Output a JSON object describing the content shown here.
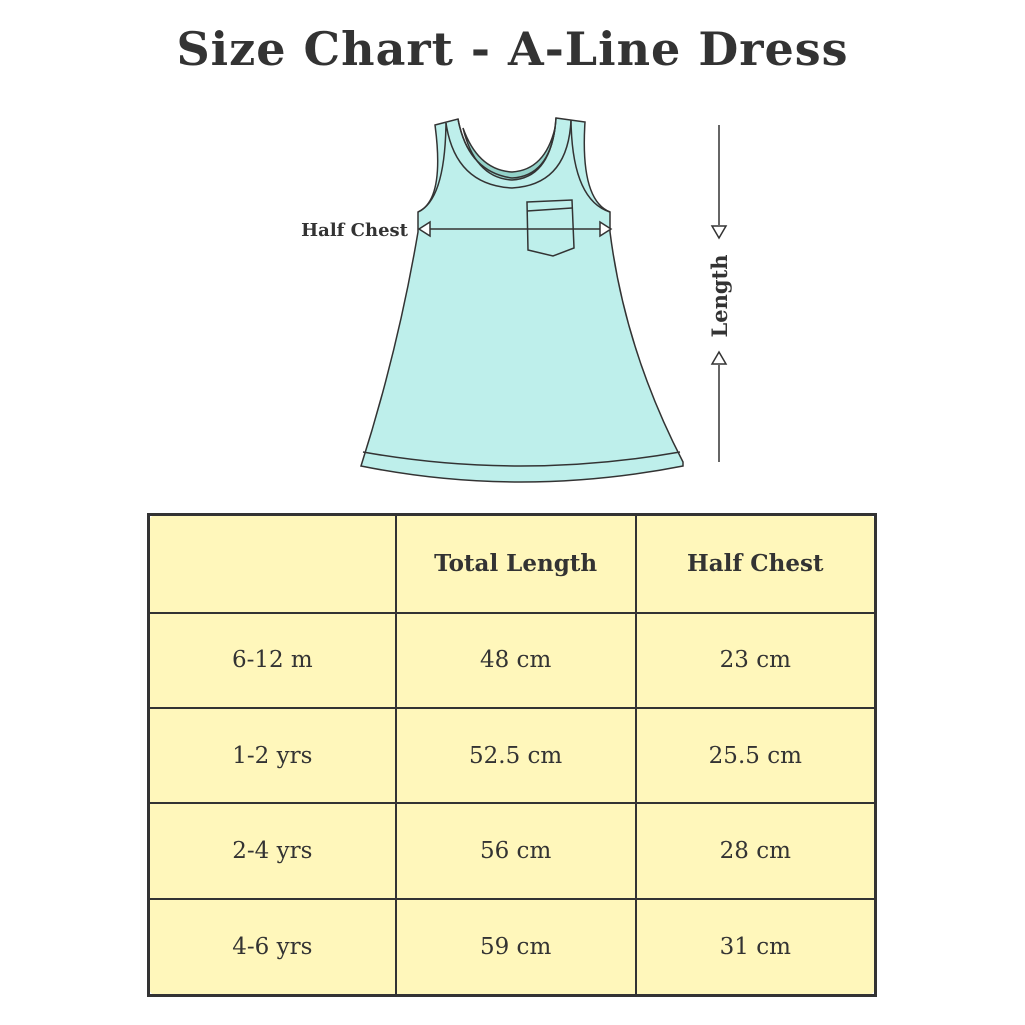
{
  "title": "Size Chart - A-Line Dress",
  "diagram": {
    "half_chest_label": "Half Chest",
    "length_label": "Length",
    "colors": {
      "dress": "#BEEFEB",
      "neck_inner": "#94D2C9",
      "outline": "#333333",
      "table_fill": "#FFF7BB"
    }
  },
  "table": {
    "headers": [
      "",
      "Total Length",
      "Half Chest"
    ],
    "rows": [
      {
        "size": "6-12 m",
        "total_length": "48 cm",
        "half_chest": "23 cm"
      },
      {
        "size": "1-2 yrs",
        "total_length": "52.5 cm",
        "half_chest": "25.5 cm"
      },
      {
        "size": "2-4 yrs",
        "total_length": "56 cm",
        "half_chest": "28 cm"
      },
      {
        "size": "4-6 yrs",
        "total_length": "59 cm",
        "half_chest": "31 cm"
      }
    ]
  }
}
